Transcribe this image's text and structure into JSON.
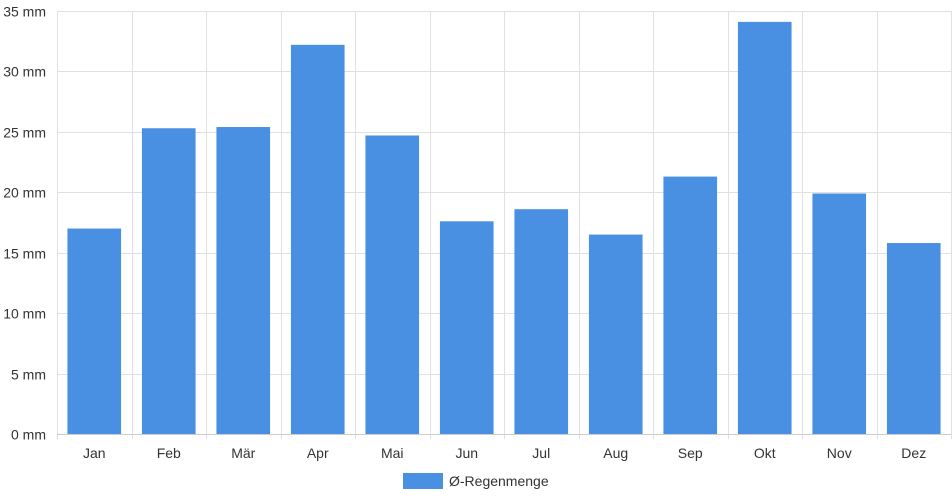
{
  "chart_data": {
    "type": "bar",
    "categories": [
      "Jan",
      "Feb",
      "Mär",
      "Apr",
      "Mai",
      "Jun",
      "Jul",
      "Aug",
      "Sep",
      "Okt",
      "Nov",
      "Dez"
    ],
    "series": [
      {
        "name": "Ø-Regenmenge",
        "values": [
          17.0,
          25.3,
          25.4,
          32.2,
          24.7,
          17.6,
          18.6,
          16.5,
          21.3,
          34.1,
          19.9,
          15.8
        ]
      }
    ],
    "y_ticks": [
      "0 mm",
      "5 mm",
      "10 mm",
      "15 mm",
      "20 mm",
      "25 mm",
      "30 mm",
      "35 mm"
    ],
    "ylim": [
      0,
      35
    ],
    "grid": true,
    "legend_position": "bottom-center",
    "colors": {
      "bar": "#4a90e2",
      "grid": "#e0e0e0",
      "text": "#333333"
    }
  }
}
